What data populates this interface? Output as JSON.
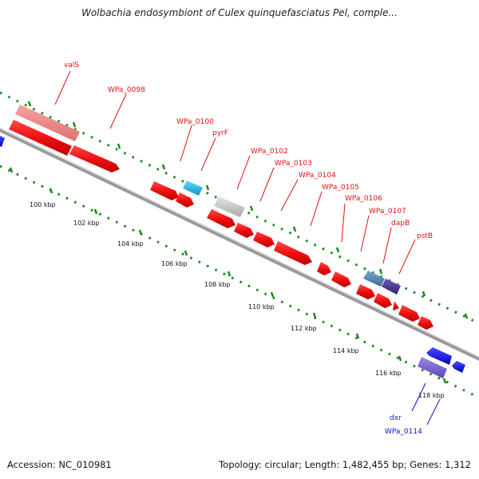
{
  "title": "Wolbachia endosymbiont of Culex quinquefasciatus Pel, comple...",
  "footer": {
    "accession": "Accession: NC_010981",
    "topology": "Topology: circular; Length: 1,482,455 bp; Genes: 1,312"
  },
  "colors": {
    "forward_red": "#ee1111",
    "reverse_blue": "#1414dd",
    "label_red": "#e01010",
    "label_blue": "#1010cc",
    "dots_green": "#1a8a1a",
    "backbone": "#8a8a8a"
  },
  "scale_labels": [
    "100 kbp",
    "102 kbp",
    "104 kbp",
    "106 kbp",
    "108 kbp",
    "110 kbp",
    "112 kbp",
    "114 kbp",
    "116 kbp",
    "118 kbp"
  ],
  "gene_labels": [
    "valS",
    "WPa_0098",
    "WPa_0100",
    "pyrF",
    "WPa_0102",
    "WPa_0103",
    "WPa_0104",
    "WPa_0105",
    "WPa_0106",
    "WPa_0107",
    "dapB",
    "pstB",
    "dxr",
    "WPa_0114"
  ]
}
